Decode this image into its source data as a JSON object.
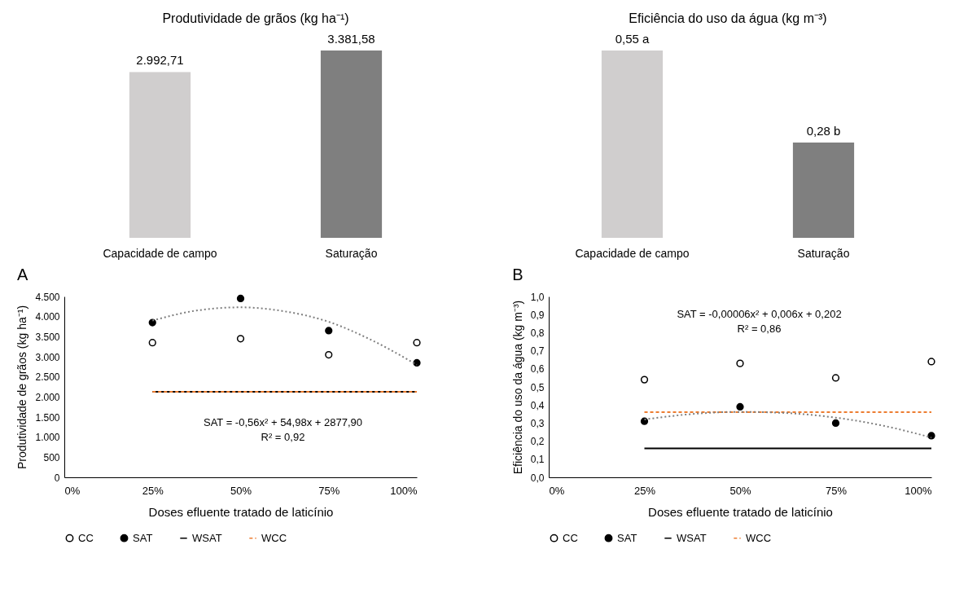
{
  "chart_data": [
    {
      "type": "bar",
      "title": "Produtividade de grãos (kg ha⁻¹)",
      "categories": [
        "Capacidade de campo",
        "Saturação"
      ],
      "values": [
        2992.71,
        3381.58
      ],
      "colors": [
        "#d0cece",
        "#7f7f7f"
      ],
      "value_labels": [
        "2.992,71",
        "3.381,58"
      ],
      "tick_labels": "x"
    },
    {
      "type": "bar",
      "title": "Eficiência do uso da água (kg m⁻³)",
      "categories": [
        "Capacidade de campo",
        "Saturação"
      ],
      "values": [
        0.55,
        0.28
      ],
      "colors": [
        "#d0cece",
        "#7f7f7f"
      ],
      "value_labels": [
        "0,55 a",
        "0,28 b"
      ],
      "tick_labels": "x"
    },
    {
      "type": "scatter",
      "title": "A",
      "xlabel": "Doses efluente tratado de laticínio",
      "ylabel": "Produtividade de grãos (kg ha⁻¹)",
      "x": [
        25,
        50,
        75,
        100
      ],
      "xlim": [
        0,
        100
      ],
      "xticks": [
        {
          "value": 0,
          "label": "0%"
        },
        {
          "value": 25,
          "label": "25%"
        },
        {
          "value": 50,
          "label": "50%"
        },
        {
          "value": 75,
          "label": "75%"
        },
        {
          "value": 100,
          "label": "100%"
        }
      ],
      "ylim": [
        0,
        4500
      ],
      "yticks": [
        0,
        500,
        {
          "value": 1000,
          "label": "1.000"
        },
        {
          "value": 1500,
          "label": "1.500"
        },
        {
          "value": 2000,
          "label": "2.000"
        },
        {
          "value": 2500,
          "label": "2.500"
        },
        {
          "value": 3000,
          "label": "3.000"
        },
        {
          "value": 3500,
          "label": "3.500"
        },
        {
          "value": 4000,
          "label": "4.000"
        },
        {
          "value": 4500,
          "label": "4.500"
        }
      ],
      "legend": "bottom",
      "series": [
        {
          "name": "CC",
          "color": "#ffffff",
          "marker": "circle",
          "values": [
            3350,
            3450,
            3050,
            3350
          ]
        },
        {
          "name": "SAT",
          "color": "#000000",
          "marker": "circle",
          "values": [
            3850,
            4450,
            3650,
            2850
          ]
        },
        {
          "name": "WSAT",
          "type": "line",
          "color": "#000000",
          "line_style": "solid",
          "x": [
            25,
            100
          ],
          "values": [
            2130,
            2130
          ]
        },
        {
          "name": "WCC",
          "type": "line",
          "color": "#ed7d31",
          "line_style": "dashed",
          "x": [
            25,
            100
          ],
          "values": [
            2130,
            2130
          ]
        },
        {
          "type": "line",
          "color": "#7f7f7f",
          "line_style": "dotted",
          "x": [
            25,
            37.5,
            50,
            62.5,
            75,
            87.5,
            100
          ],
          "values": [
            3900,
            4150,
            4230,
            4130,
            3870,
            3400,
            2800
          ]
        }
      ],
      "annotations": [
        "SAT = -0,56x² + 54,98x + 2877,90",
        "R² = 0,92"
      ]
    },
    {
      "type": "scatter",
      "title": "B",
      "xlabel": "Doses efluente tratado de laticínio",
      "ylabel": "Eficiência do uso da água (kg m⁻³)",
      "x": [
        25,
        50,
        75,
        100
      ],
      "xlim": [
        0,
        100
      ],
      "xticks": [
        {
          "value": 0,
          "label": "0%"
        },
        {
          "value": 25,
          "label": "25%"
        },
        {
          "value": 50,
          "label": "50%"
        },
        {
          "value": 75,
          "label": "75%"
        },
        {
          "value": 100,
          "label": "100%"
        }
      ],
      "ylim": [
        0,
        1
      ],
      "yticks": [
        {
          "value": 0,
          "label": "0,0"
        },
        {
          "value": 0.1,
          "label": "0,1"
        },
        {
          "value": 0.2,
          "label": "0,2"
        },
        {
          "value": 0.3,
          "label": "0,3"
        },
        {
          "value": 0.4,
          "label": "0,4"
        },
        {
          "value": 0.5,
          "label": "0,5"
        },
        {
          "value": 0.6,
          "label": "0,6"
        },
        {
          "value": 0.7,
          "label": "0,7"
        },
        {
          "value": 0.8,
          "label": "0,8"
        },
        {
          "value": 0.9,
          "label": "0,9"
        },
        {
          "value": 1,
          "label": "1,0"
        }
      ],
      "legend": "bottom",
      "series": [
        {
          "name": "CC",
          "color": "#ffffff",
          "marker": "circle",
          "values": [
            0.54,
            0.63,
            0.55,
            0.64
          ]
        },
        {
          "name": "SAT",
          "color": "#000000",
          "marker": "circle",
          "values": [
            0.31,
            0.39,
            0.3,
            0.23
          ]
        },
        {
          "name": "WSAT",
          "type": "line",
          "color": "#000000",
          "line_style": "solid",
          "x": [
            25,
            100
          ],
          "values": [
            0.16,
            0.16
          ]
        },
        {
          "name": "WCC",
          "type": "line",
          "color": "#ed7d31",
          "line_style": "dashed",
          "x": [
            25,
            100
          ],
          "values": [
            0.36,
            0.36
          ]
        },
        {
          "type": "line",
          "color": "#7f7f7f",
          "line_style": "dotted",
          "x": [
            25,
            37.5,
            50,
            62.5,
            75,
            87.5,
            100
          ],
          "values": [
            0.32,
            0.35,
            0.362,
            0.355,
            0.33,
            0.285,
            0.22
          ]
        }
      ],
      "annotations": [
        "SAT = -0,00006x² + 0,006x + 0,202",
        "R² = 0,86"
      ]
    }
  ]
}
